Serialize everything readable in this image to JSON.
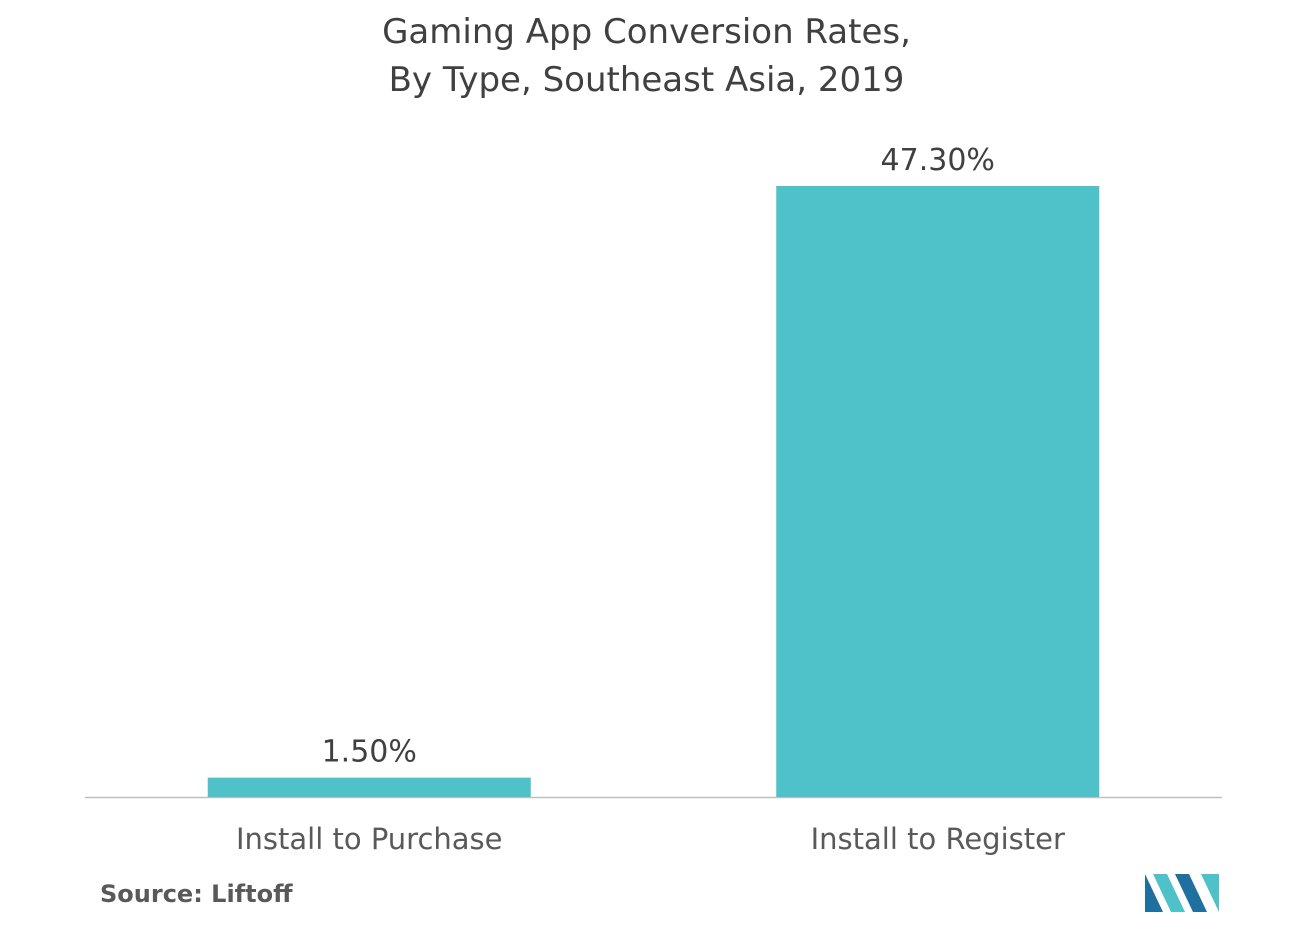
{
  "chart_data": {
    "type": "bar",
    "title_lines": [
      "Gaming App Conversion Rates,",
      "By Type, Southeast Asia, 2019"
    ],
    "categories": [
      "Install to Purchase",
      "Install to Register"
    ],
    "values": [
      1.5,
      47.3
    ],
    "value_labels": [
      "1.50%",
      "47.30%"
    ],
    "xlabel": "",
    "ylabel": "",
    "ylim": [
      0,
      47.3
    ],
    "grid": false,
    "legend": "none",
    "bar_color": "#4fc1c9"
  },
  "source": "Source: Liftoff",
  "logo": {
    "icon": "mordor-intelligence-logo-icon",
    "colors": [
      "#1f6f9f",
      "#4fc1c9"
    ]
  }
}
